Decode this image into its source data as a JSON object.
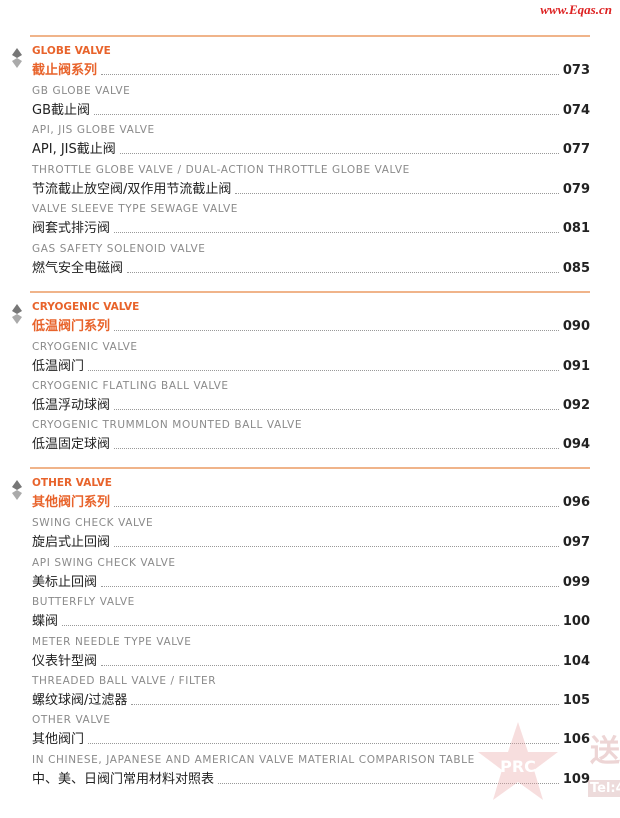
{
  "header": {
    "site": "www.Eqas.cn"
  },
  "sections": [
    {
      "title_en": "GLOBE VALVE",
      "title_cn": "截止阀系列",
      "page": "073",
      "entries": [
        {
          "en": "GB GLOBE VALVE",
          "cn": "GB截止阀",
          "page": "074"
        },
        {
          "en": "API, JIS GLOBE VALVE",
          "cn": "API, JIS截止阀",
          "page": "077"
        },
        {
          "en": "THROTTLE GLOBE VALVE / DUAL-ACTION THROTTLE GLOBE VALVE",
          "cn": "节流截止放空阀/双作用节流截止阀",
          "page": "079"
        },
        {
          "en": "VALVE SLEEVE TYPE SEWAGE VALVE",
          "cn": "阀套式排污阀",
          "page": "081"
        },
        {
          "en": "GAS SAFETY SOLENOID VALVE",
          "cn": "燃气安全电磁阀",
          "page": "085"
        }
      ]
    },
    {
      "title_en": "CRYOGENIC VALVE",
      "title_cn": "低温阀门系列",
      "page": "090",
      "entries": [
        {
          "en": "CRYOGENIC VALVE",
          "cn": "低温阀门",
          "page": "091"
        },
        {
          "en": "CRYOGENIC FLATLING BALL VALVE",
          "cn": "低温浮动球阀",
          "page": "092"
        },
        {
          "en": "CRYOGENIC TRUMMLON MOUNTED BALL VALVE",
          "cn": "低温固定球阀",
          "page": "094"
        }
      ]
    },
    {
      "title_en": "OTHER VALVE",
      "title_cn": "其他阀门系列",
      "page": "096",
      "entries": [
        {
          "en": "SWING CHECK VALVE",
          "cn": "旋启式止回阀",
          "page": "097"
        },
        {
          "en": "API SWING CHECK VALVE",
          "cn": "美标止回阀",
          "page": "099"
        },
        {
          "en": "BUTTERFLY VALVE",
          "cn": "蝶阀",
          "page": "100"
        },
        {
          "en": "METER NEEDLE TYPE VALVE",
          "cn": "仪表针型阀",
          "page": "104"
        },
        {
          "en": "THREADED BALL VALVE / FILTER",
          "cn": "螺纹球阀/过滤器",
          "page": "105"
        },
        {
          "en": "OTHER VALVE",
          "cn": "其他阀门",
          "page": "106"
        },
        {
          "en": "IN CHINESE, JAPANESE AND AMERICAN VALVE MATERIAL COMPARISON TABLE",
          "cn": "中、美、日阀门常用材料对照表",
          "page": "109"
        }
      ]
    }
  ],
  "watermark": {
    "stamp": "PRC",
    "side": "送",
    "tel": "Tel:4"
  }
}
